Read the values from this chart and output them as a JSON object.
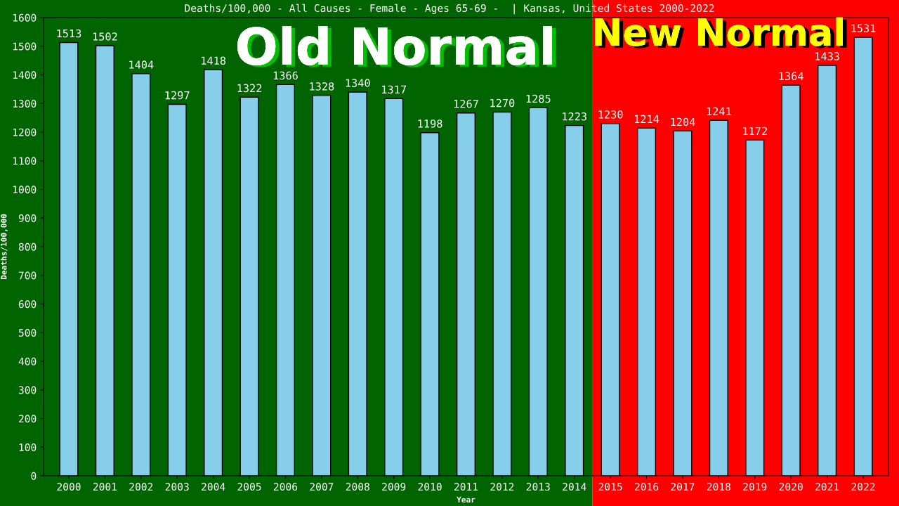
{
  "chart_data": {
    "type": "bar",
    "title": "Deaths/100,000 - All Causes - Female - Ages 65-69 -  | Kansas, United States 2000-2022",
    "xlabel": "Year",
    "ylabel": "Deaths/100,000",
    "categories": [
      "2000",
      "2001",
      "2002",
      "2003",
      "2004",
      "2005",
      "2006",
      "2007",
      "2008",
      "2009",
      "2010",
      "2011",
      "2012",
      "2013",
      "2014",
      "2015",
      "2016",
      "2017",
      "2018",
      "2019",
      "2020",
      "2021",
      "2022"
    ],
    "values": [
      1513,
      1502,
      1404,
      1297,
      1418,
      1322,
      1366,
      1328,
      1340,
      1317,
      1198,
      1267,
      1270,
      1285,
      1223,
      1230,
      1214,
      1204,
      1241,
      1172,
      1364,
      1433,
      1531
    ],
    "color": "#87ceeb",
    "data_labels": true,
    "ylim": [
      0,
      1600
    ],
    "yticks": [
      0,
      100,
      200,
      300,
      400,
      500,
      600,
      700,
      800,
      900,
      1000,
      1100,
      1200,
      1300,
      1400,
      1500,
      1600
    ],
    "grid": false,
    "bands": [
      {
        "axis": "x",
        "from": "2000",
        "to": "2014",
        "label": "Old Normal",
        "color": "#006400"
      },
      {
        "axis": "x",
        "from": "2015",
        "to": "2022",
        "label": "New Normal",
        "color": "#ff0000"
      }
    ]
  }
}
